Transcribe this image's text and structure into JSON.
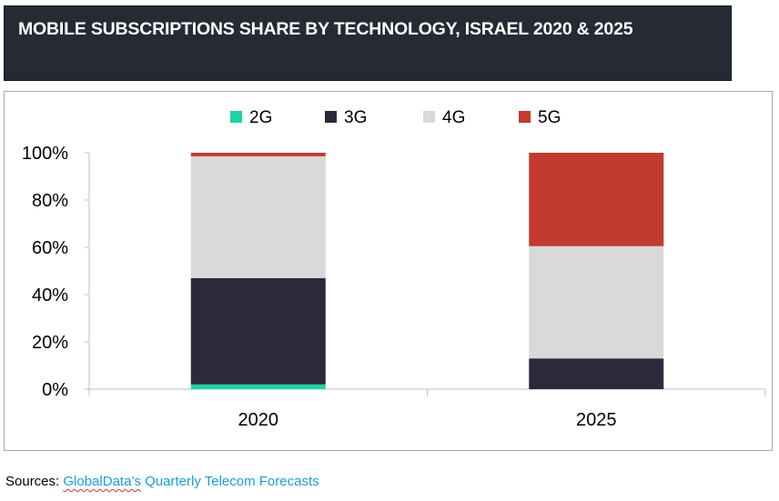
{
  "header": {
    "title": "MOBILE SUBSCRIPTIONS SHARE BY TECHNOLOGY, ISRAEL 2020 & 2025"
  },
  "chart_data": {
    "type": "bar",
    "stacked": true,
    "categories": [
      "2020",
      "2025"
    ],
    "series": [
      {
        "name": "2G",
        "color": "#1ed3a6",
        "values": [
          2,
          0
        ]
      },
      {
        "name": "3G",
        "color": "#2b2a3d",
        "values": [
          45,
          13
        ]
      },
      {
        "name": "4G",
        "color": "#d9d9d9",
        "values": [
          51.5,
          47.5
        ]
      },
      {
        "name": "5G",
        "color": "#c23b2e",
        "values": [
          1.5,
          39.5
        ]
      }
    ],
    "yticks": [
      "0%",
      "20%",
      "40%",
      "60%",
      "80%",
      "100%"
    ],
    "ylim": [
      0,
      100
    ],
    "legend": "top",
    "grid": false,
    "title": "",
    "xlabel": "",
    "ylabel": ""
  },
  "footer": {
    "prefix": "Sources: ",
    "link_part1": "GlobalData’s",
    "link_part2": " Quarterly Telecom Forecasts"
  }
}
